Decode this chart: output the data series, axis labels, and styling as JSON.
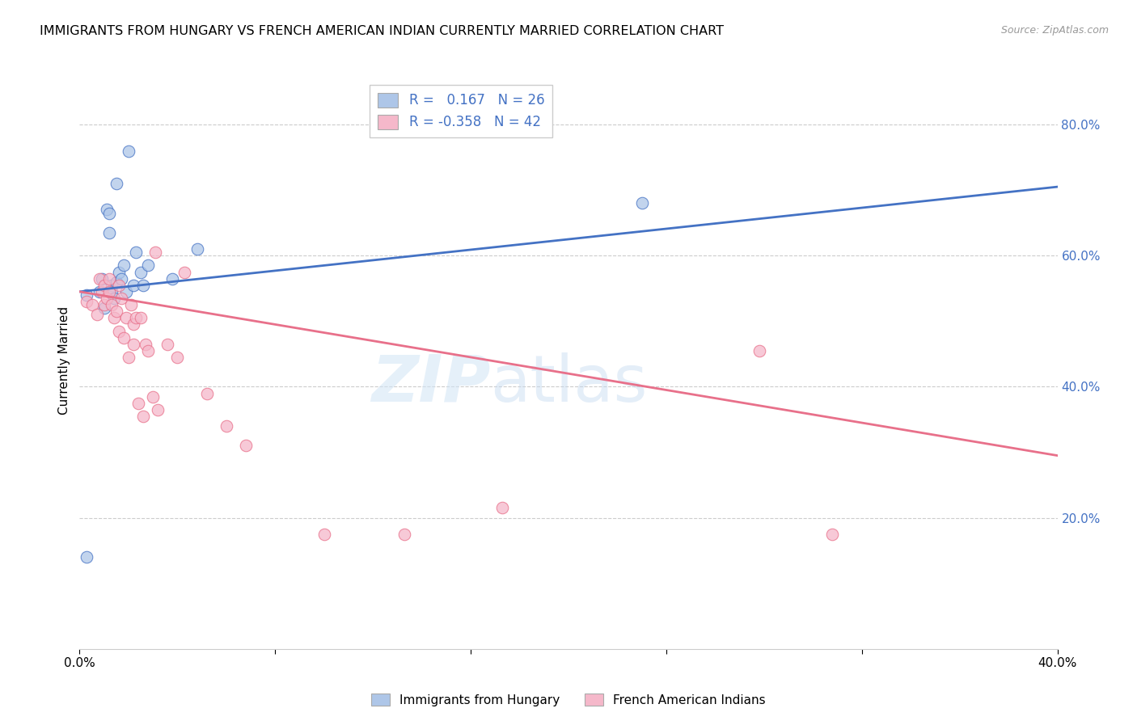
{
  "title": "IMMIGRANTS FROM HUNGARY VS FRENCH AMERICAN INDIAN CURRENTLY MARRIED CORRELATION CHART",
  "source": "Source: ZipAtlas.com",
  "ylabel": "Currently Married",
  "xlim": [
    0.0,
    0.4
  ],
  "ylim": [
    0.0,
    0.88
  ],
  "x_ticks": [
    0.0,
    0.08,
    0.16,
    0.24,
    0.32,
    0.4
  ],
  "x_tick_labels": [
    "0.0%",
    "",
    "",
    "",
    "",
    "40.0%"
  ],
  "y_ticks_right": [
    0.2,
    0.4,
    0.6,
    0.8
  ],
  "y_tick_labels_right": [
    "20.0%",
    "40.0%",
    "60.0%",
    "80.0%"
  ],
  "blue_R": 0.167,
  "blue_N": 26,
  "pink_R": -0.358,
  "pink_N": 42,
  "blue_color": "#aec6e8",
  "pink_color": "#f5b8ca",
  "blue_line_color": "#4472c4",
  "pink_line_color": "#e8708a",
  "legend_label_blue": "Immigrants from Hungary",
  "legend_label_pink": "French American Indians",
  "watermark_1": "ZIP",
  "watermark_2": "atlas",
  "blue_points_x": [
    0.003,
    0.008,
    0.009,
    0.01,
    0.011,
    0.012,
    0.012,
    0.013,
    0.013,
    0.014,
    0.015,
    0.015,
    0.016,
    0.017,
    0.018,
    0.019,
    0.02,
    0.022,
    0.023,
    0.025,
    0.026,
    0.028,
    0.038,
    0.048,
    0.23,
    0.003
  ],
  "blue_points_y": [
    0.54,
    0.545,
    0.565,
    0.52,
    0.67,
    0.665,
    0.635,
    0.555,
    0.545,
    0.535,
    0.56,
    0.71,
    0.575,
    0.565,
    0.585,
    0.545,
    0.76,
    0.555,
    0.605,
    0.575,
    0.555,
    0.585,
    0.565,
    0.61,
    0.68,
    0.14
  ],
  "pink_points_x": [
    0.003,
    0.005,
    0.007,
    0.008,
    0.009,
    0.01,
    0.01,
    0.011,
    0.012,
    0.012,
    0.013,
    0.014,
    0.015,
    0.016,
    0.016,
    0.017,
    0.018,
    0.019,
    0.02,
    0.021,
    0.022,
    0.022,
    0.023,
    0.024,
    0.025,
    0.026,
    0.027,
    0.028,
    0.03,
    0.031,
    0.032,
    0.036,
    0.04,
    0.043,
    0.052,
    0.06,
    0.068,
    0.1,
    0.133,
    0.173,
    0.278,
    0.308
  ],
  "pink_points_y": [
    0.53,
    0.525,
    0.51,
    0.565,
    0.545,
    0.525,
    0.555,
    0.535,
    0.545,
    0.565,
    0.525,
    0.505,
    0.515,
    0.485,
    0.555,
    0.535,
    0.475,
    0.505,
    0.445,
    0.525,
    0.495,
    0.465,
    0.505,
    0.375,
    0.505,
    0.355,
    0.465,
    0.455,
    0.385,
    0.605,
    0.365,
    0.465,
    0.445,
    0.575,
    0.39,
    0.34,
    0.31,
    0.175,
    0.175,
    0.215,
    0.455,
    0.175
  ],
  "background_color": "#ffffff",
  "grid_color": "#cccccc"
}
